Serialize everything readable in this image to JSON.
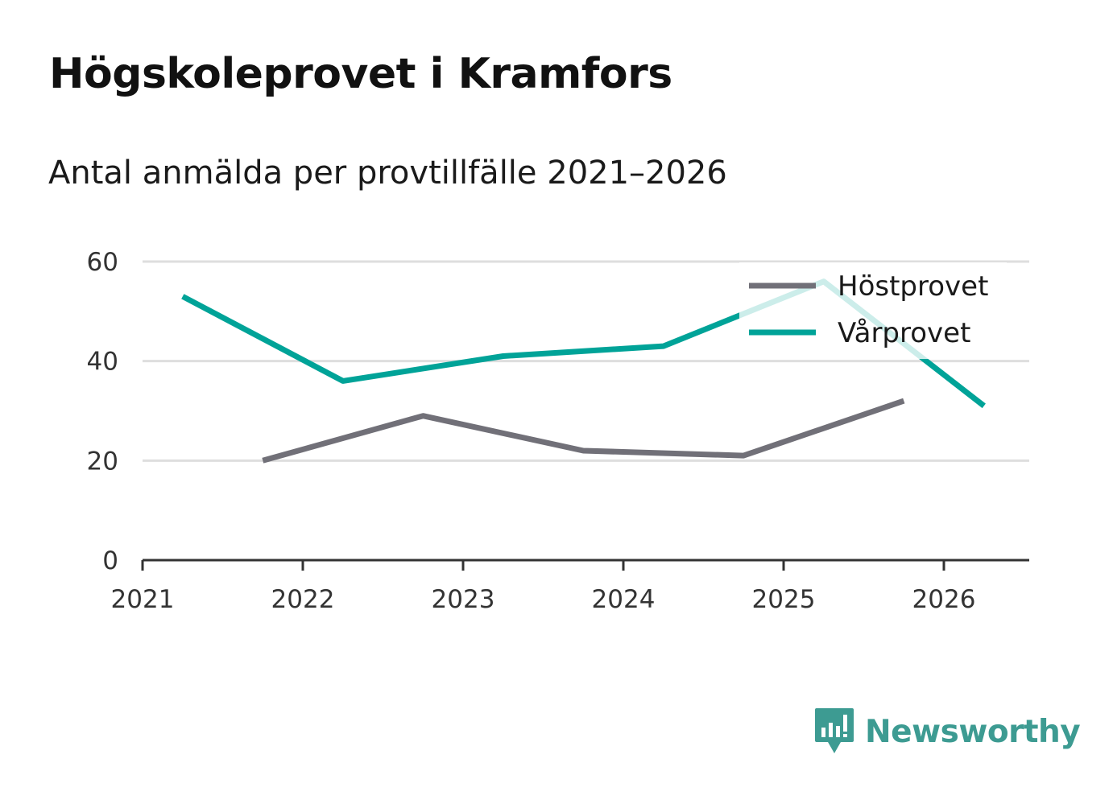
{
  "title": "Högskoleprovet i Kramfors",
  "subtitle": "Antal anmälda per provtillfälle 2021–2026",
  "brand": {
    "name": "Newsworthy",
    "icon": "newsworthy-logo-icon",
    "color": "#3d9b92"
  },
  "chart_data": {
    "type": "line",
    "title": "Högskoleprovet i Kramfors",
    "subtitle": "Antal anmälda per provtillfälle 2021–2026",
    "xlabel": "",
    "ylabel": "",
    "xlim": [
      2021,
      2026.55
    ],
    "ylim": [
      0,
      60
    ],
    "x_ticks": [
      "2021",
      "2022",
      "2023",
      "2024",
      "2025",
      "2026"
    ],
    "y_ticks": [
      "0",
      "20",
      "40",
      "60"
    ],
    "grid": true,
    "legend_position": "top-right",
    "series": [
      {
        "name": "Höstprovet",
        "color": "#717078",
        "points": [
          {
            "x": 2021.75,
            "y": 20
          },
          {
            "x": 2022.75,
            "y": 29
          },
          {
            "x": 2023.75,
            "y": 22
          },
          {
            "x": 2024.75,
            "y": 21
          },
          {
            "x": 2025.75,
            "y": 32
          }
        ]
      },
      {
        "name": "Vårprovet",
        "color": "#00a398",
        "points": [
          {
            "x": 2021.25,
            "y": 53
          },
          {
            "x": 2022.25,
            "y": 36
          },
          {
            "x": 2023.25,
            "y": 41
          },
          {
            "x": 2024.25,
            "y": 43
          },
          {
            "x": 2025.25,
            "y": 56
          },
          {
            "x": 2026.25,
            "y": 31
          }
        ]
      }
    ]
  }
}
